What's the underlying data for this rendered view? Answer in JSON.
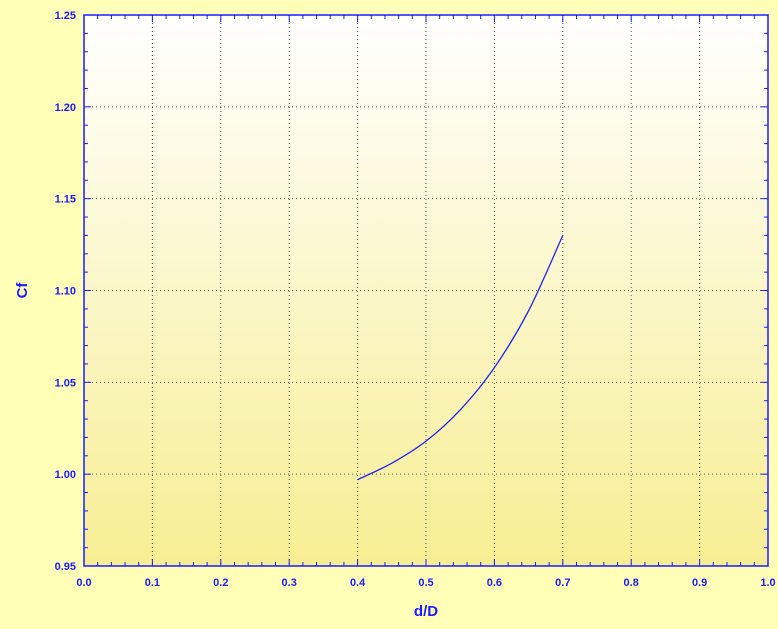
{
  "colors": {
    "background": "#ffffb8",
    "plot_top": "#ffffff",
    "plot_bottom": "#f7ee93",
    "axis": "#1a1aff",
    "grid": "#555555",
    "series": "#2222ee"
  },
  "chart_data": {
    "type": "line",
    "title": "",
    "xlabel": "d/D",
    "ylabel": "Cf",
    "xlim": [
      0.0,
      1.0
    ],
    "ylim": [
      0.95,
      1.25
    ],
    "x_ticks": [
      "0.0",
      "0.1",
      "0.2",
      "0.3",
      "0.4",
      "0.5",
      "0.6",
      "0.7",
      "0.8",
      "0.9",
      "1.0"
    ],
    "y_ticks": [
      "0.95",
      "1.00",
      "1.05",
      "1.10",
      "1.15",
      "1.20",
      "1.25"
    ],
    "grid": true,
    "legend": "none",
    "series": [
      {
        "x": [
          0.4,
          0.45,
          0.5,
          0.55,
          0.6,
          0.65,
          0.7
        ],
        "y": [
          0.997,
          1.006,
          1.018,
          1.035,
          1.058,
          1.089,
          1.13
        ]
      }
    ]
  }
}
